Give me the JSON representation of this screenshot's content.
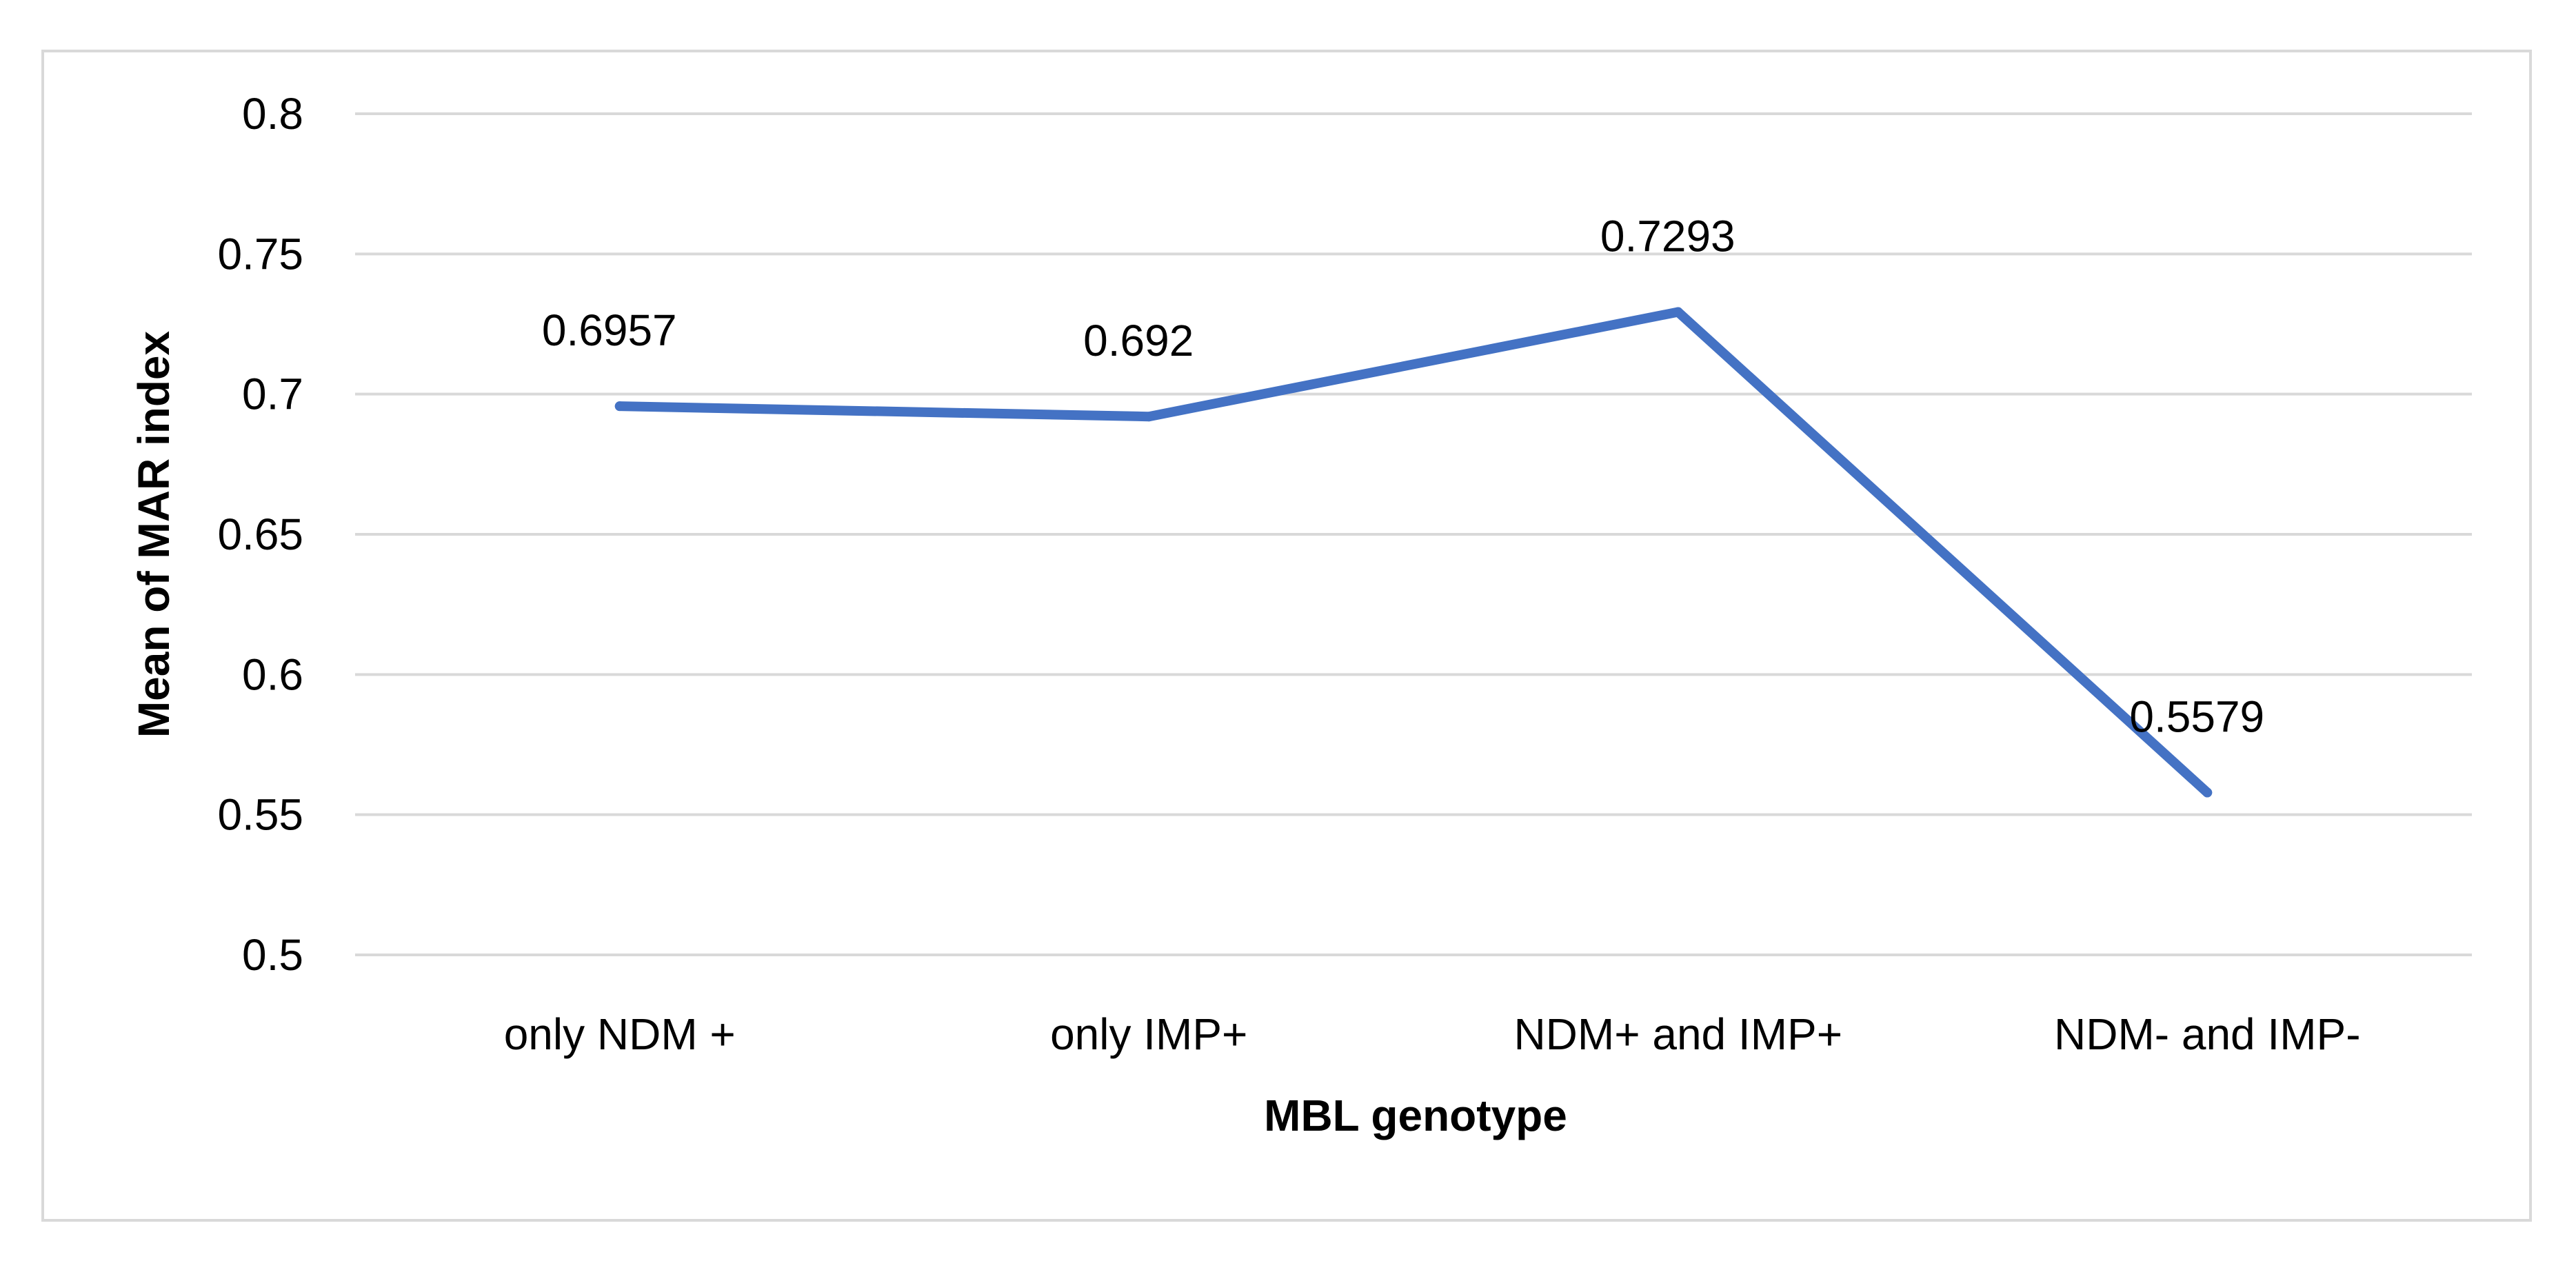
{
  "chart_data": {
    "type": "line",
    "title": "",
    "xlabel": "MBL genotype",
    "ylabel": "Mean of MAR index",
    "categories": [
      "only NDM +",
      "only IMP+",
      "NDM+ and IMP+",
      "NDM- and IMP-"
    ],
    "series": [
      {
        "values": [
          0.6957,
          0.692,
          0.7293,
          0.5579
        ],
        "labels": [
          "0.6957",
          "0.692",
          "0.7293",
          "0.5579"
        ],
        "color": "#4472C4"
      }
    ],
    "ylim": [
      0.5,
      0.8
    ],
    "yticks": [
      "0.5",
      "0.55",
      "0.6",
      "0.65",
      "0.7",
      "0.75",
      "0.8"
    ],
    "grid": true,
    "legend": "none"
  }
}
